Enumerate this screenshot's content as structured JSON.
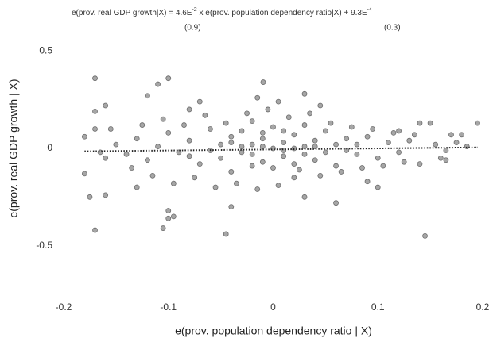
{
  "chart_data": {
    "type": "scatter",
    "annotation": {
      "parts": [
        "e(prov. real GDP growth|X) = 4.6E",
        "-2",
        " x e(prov. population dependency ratio|X) + 9.3E",
        "-4"
      ],
      "se_slope": "(0.9)",
      "se_intercept": "(0.3)"
    },
    "x_label": "e(prov. population dependency ratio | X)",
    "y_label": "e(prov. real GDP growth | X)",
    "xlim": [
      -0.2,
      0.2
    ],
    "xticks": [
      -0.2,
      -0.1,
      0,
      0.1,
      0.2
    ],
    "ylim": [
      -0.75,
      0.75
    ],
    "yticks": [
      -0.5,
      0,
      0.5
    ],
    "color": "#a6a6a6",
    "trend_x": [
      -0.18,
      0.195
    ],
    "trend_y": [
      -0.015,
      0.005
    ],
    "x": [
      -0.17,
      -0.1,
      -0.11,
      -0.0095,
      0.03,
      -0.16,
      -0.17,
      -0.08,
      -0.12,
      -0.17,
      -0.045,
      0.145,
      -0.105,
      -0.1,
      -0.095,
      -0.1,
      -0.175,
      -0.16,
      -0.18,
      0.06,
      -0.04,
      0.1,
      0.03,
      0.14,
      0.15,
      0.195,
      0.17,
      0.18,
      0.16,
      0.165,
      -0.15,
      -0.14,
      -0.13,
      -0.12,
      -0.11,
      -0.1,
      -0.09,
      -0.08,
      -0.07,
      -0.06,
      -0.05,
      -0.05,
      -0.04,
      -0.04,
      -0.03,
      -0.03,
      -0.02,
      -0.02,
      -0.01,
      -0.01,
      0,
      0,
      0,
      0.01,
      0.01,
      0.02,
      0.02,
      0.03,
      0.03,
      0.04,
      0.04,
      0.05,
      0.05,
      0.06,
      0.06,
      0.07,
      0.08,
      0.09,
      0.1,
      0.11,
      0.12,
      0.13,
      0.14,
      -0.16,
      -0.155,
      -0.135,
      -0.125,
      -0.115,
      -0.105,
      -0.095,
      -0.085,
      -0.075,
      -0.065,
      -0.055,
      -0.045,
      -0.035,
      -0.025,
      -0.015,
      -0.005,
      0.005,
      0.015,
      0.025,
      0.035,
      0.045,
      0.055,
      0.065,
      0.075,
      0.085,
      0.095,
      0.105,
      0.115,
      0.125,
      0.135,
      0.155,
      0.165,
      0.175,
      0.185,
      -0.02,
      -0.01,
      0.01,
      0.02,
      -0.03,
      0.03,
      -0.04,
      0.04,
      -0.06,
      0.07,
      0.08,
      -0.08,
      -0.01,
      0.01,
      -0.02,
      0.02,
      0.005,
      -0.015,
      0.045,
      -0.07,
      -0.13,
      0.09,
      0.12,
      -0.17,
      -0.165,
      -0.18
    ],
    "values": [
      0.36,
      0.36,
      0.33,
      0.34,
      0.28,
      0.22,
      0.19,
      0.2,
      0.27,
      -0.42,
      -0.44,
      -0.45,
      -0.41,
      -0.32,
      -0.35,
      -0.36,
      -0.25,
      -0.24,
      -0.13,
      -0.28,
      -0.3,
      -0.2,
      -0.25,
      0.13,
      0.13,
      0.13,
      0.07,
      0.07,
      -0.05,
      -0.06,
      0.02,
      -0.03,
      0.05,
      -0.06,
      0.01,
      0.08,
      -0.02,
      0.04,
      -0.08,
      0.1,
      0.02,
      -0.05,
      0.06,
      -0.12,
      0.01,
      0.09,
      -0.03,
      0.14,
      0.05,
      -0.07,
      0,
      0.11,
      -0.1,
      0.03,
      -0.04,
      0.07,
      -0.15,
      0.01,
      0.12,
      -0.06,
      0.04,
      0.09,
      -0.02,
      0.02,
      -0.09,
      0.05,
      -0.03,
      0.06,
      -0.05,
      0.03,
      -0.02,
      0.04,
      -0.08,
      -0.05,
      0.1,
      -0.1,
      0.12,
      -0.14,
      0.15,
      -0.18,
      0.12,
      -0.15,
      0.17,
      -0.2,
      0.13,
      -0.18,
      0.18,
      -0.21,
      0.2,
      -0.19,
      0.16,
      -0.11,
      0.18,
      -0.14,
      0.13,
      -0.12,
      0.11,
      -0.1,
      0.1,
      -0.09,
      0.08,
      -0.07,
      0.07,
      0.02,
      -0.01,
      0.03,
      0.01,
      0.02,
      0.01,
      -0.01,
      0,
      -0.02,
      -0.03,
      0.03,
      0.01,
      -0.01,
      -0.01,
      0.02,
      -0.04,
      0.08,
      0.09,
      -0.09,
      -0.08,
      0.24,
      0.26,
      0.22,
      0.24,
      -0.2,
      -0.17,
      0.09,
      0.1,
      -0.02,
      0.06
    ]
  }
}
